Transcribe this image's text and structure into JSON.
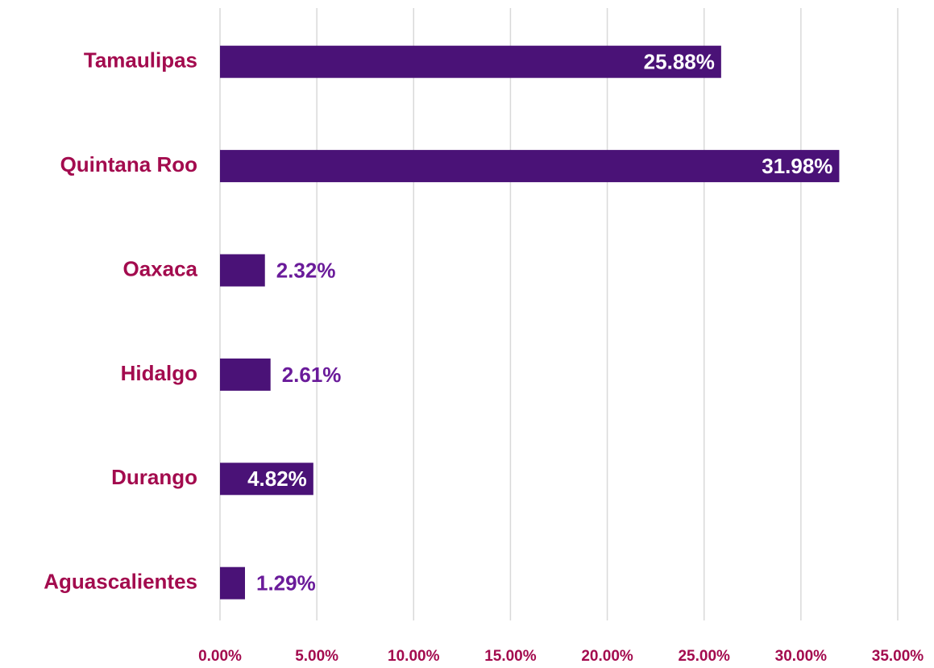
{
  "chart_data": {
    "type": "bar",
    "orientation": "horizontal",
    "categories": [
      "Tamaulipas",
      "Quintana Roo",
      "Oaxaca",
      "Hidalgo",
      "Durango",
      "Aguascalientes"
    ],
    "values": [
      25.88,
      31.98,
      2.32,
      2.61,
      4.82,
      1.29
    ],
    "value_labels": [
      "25.88%",
      "31.98%",
      "2.32%",
      "2.61%",
      "4.82%",
      "1.29%"
    ],
    "color": "#4a1277",
    "xlim": [
      0,
      35
    ],
    "xticks": [
      {
        "value": 0,
        "label": "0.00%"
      },
      {
        "value": 5,
        "label": "5.00%"
      },
      {
        "value": 10,
        "label": "10.00%"
      },
      {
        "value": 15,
        "label": "15.00%"
      },
      {
        "value": 20,
        "label": "20.00%"
      },
      {
        "value": 25,
        "label": "25.00%"
      },
      {
        "value": 30,
        "label": "30.00%"
      },
      {
        "value": 35,
        "label": "35.00%"
      }
    ],
    "grid": true
  }
}
